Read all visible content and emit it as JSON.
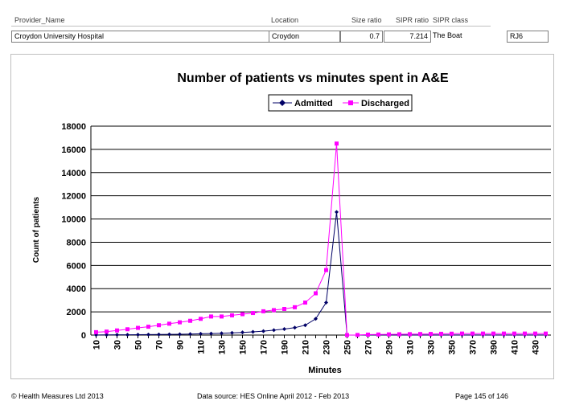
{
  "header": {
    "labels": {
      "provider": "Provider_Name",
      "location": "Location",
      "size_ratio": "Size ratio",
      "sipr_ratio": "SIPR ratio",
      "sipr_class": "SIPR class"
    },
    "values": {
      "provider": "Croydon University Hospital",
      "location": "Croydon",
      "size_ratio": "0.7",
      "sipr_ratio": "7.214",
      "sipr_class": "The Boat",
      "code": "RJ6"
    }
  },
  "footer": {
    "copyright": "© Health Measures Ltd 2013",
    "source": "Data source:  HES Online April 2012 - Feb 2013",
    "page": "Page 145 of 146"
  },
  "colors": {
    "admitted": "#000066",
    "discharged": "#ff00ff"
  },
  "chart_data": {
    "type": "line",
    "title": "Number of patients vs minutes spent in A&E",
    "xlabel": "Minutes",
    "ylabel": "Count of patients",
    "ylim": [
      0,
      18000
    ],
    "yticks": [
      0,
      2000,
      4000,
      6000,
      8000,
      10000,
      12000,
      14000,
      16000,
      18000
    ],
    "grid": true,
    "legend_position": "top-right",
    "x": [
      10,
      20,
      30,
      40,
      50,
      60,
      70,
      80,
      90,
      100,
      110,
      120,
      130,
      140,
      150,
      160,
      170,
      180,
      190,
      200,
      210,
      220,
      230,
      240,
      250,
      260,
      270,
      280,
      290,
      300,
      310,
      320,
      330,
      340,
      350,
      360,
      370,
      380,
      390,
      400,
      410,
      420,
      430,
      440
    ],
    "x_tick_labels": [
      "10",
      "30",
      "50",
      "70",
      "90",
      "110",
      "130",
      "150",
      "170",
      "190",
      "210",
      "230",
      "250",
      "270",
      "290",
      "310",
      "330",
      "350",
      "370",
      "390",
      "410",
      "430"
    ],
    "series": [
      {
        "name": "Admitted",
        "marker": "diamond",
        "values": [
          10,
          20,
          25,
          30,
          35,
          45,
          50,
          60,
          70,
          90,
          110,
          130,
          160,
          190,
          230,
          280,
          340,
          420,
          520,
          640,
          850,
          1400,
          2800,
          10600,
          0,
          0,
          0,
          5,
          5,
          5,
          5,
          5,
          5,
          5,
          5,
          5,
          5,
          5,
          5,
          5,
          5,
          5,
          5,
          5
        ]
      },
      {
        "name": "Discharged",
        "marker": "square",
        "values": [
          250,
          300,
          400,
          500,
          620,
          720,
          850,
          980,
          1100,
          1230,
          1400,
          1600,
          1600,
          1700,
          1800,
          1900,
          2050,
          2150,
          2250,
          2400,
          2800,
          3600,
          5600,
          16500,
          0,
          10,
          40,
          50,
          60,
          70,
          80,
          90,
          100,
          110,
          120,
          130,
          130,
          130,
          130,
          130,
          130,
          130,
          130,
          130
        ]
      }
    ]
  }
}
